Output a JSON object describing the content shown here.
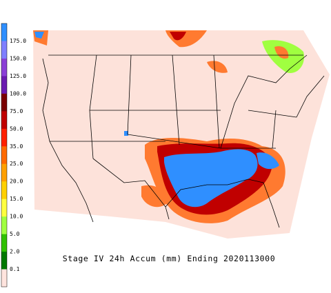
{
  "legend": {
    "labels": [
      "175.0",
      "150.0",
      "125.0",
      "100.0",
      "75.0",
      "50.0",
      "35.0",
      "25.0",
      "20.0",
      "15.0",
      "10.0",
      "5.0",
      "2.0",
      "0.1"
    ],
    "colors": [
      "#2f8fff",
      "#7f7fff",
      "#8a3fd6",
      "#6a1bb0",
      "#7a0000",
      "#c00000",
      "#ff2000",
      "#ff6a00",
      "#ffa000",
      "#ffd000",
      "#ffff40",
      "#a0ff40",
      "#30c000",
      "#007800",
      "#ffe4de"
    ]
  },
  "title": "Stage IV 24h Accum (mm) Ending 2020113000"
}
